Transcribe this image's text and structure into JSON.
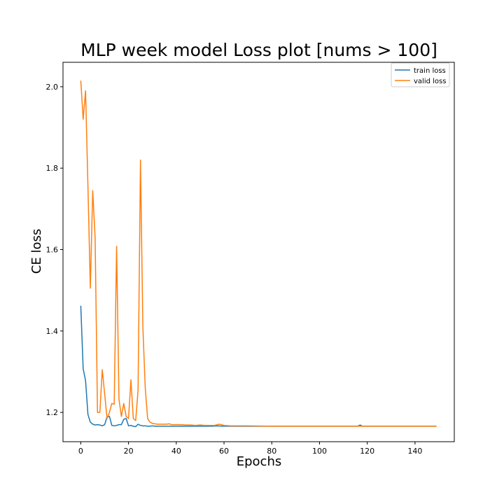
{
  "chart_data": {
    "type": "line",
    "title": "MLP week model Loss plot [nums > 100]",
    "xlabel": "Epochs",
    "ylabel": "CE loss",
    "xlim": [
      -7.45,
      156.45
    ],
    "ylim": [
      1.128,
      2.06
    ],
    "x_ticks": [
      0,
      20,
      40,
      60,
      80,
      100,
      120,
      140
    ],
    "y_ticks": [
      1.2,
      1.4,
      1.6,
      1.8,
      2.0
    ],
    "x_tick_labels": [
      "0",
      "20",
      "40",
      "60",
      "80",
      "100",
      "120",
      "140"
    ],
    "y_tick_labels": [
      "1.2",
      "1.4",
      "1.6",
      "1.8",
      "2.0"
    ],
    "grid": false,
    "legend": "top-right",
    "series": [
      {
        "name": "train loss",
        "color": "#1f77b4",
        "points": [
          [
            0,
            1.462
          ],
          [
            1,
            1.307
          ],
          [
            2,
            1.278
          ],
          [
            3,
            1.195
          ],
          [
            4,
            1.176
          ],
          [
            5,
            1.171
          ],
          [
            6,
            1.169
          ],
          [
            7,
            1.17
          ],
          [
            8,
            1.169
          ],
          [
            9,
            1.167
          ],
          [
            10,
            1.17
          ],
          [
            11,
            1.189
          ],
          [
            12,
            1.19
          ],
          [
            13,
            1.168
          ],
          [
            14,
            1.167
          ],
          [
            15,
            1.168
          ],
          [
            16,
            1.17
          ],
          [
            17,
            1.17
          ],
          [
            18,
            1.183
          ],
          [
            19,
            1.185
          ],
          [
            20,
            1.167
          ],
          [
            21,
            1.168
          ],
          [
            22,
            1.166
          ],
          [
            23,
            1.165
          ],
          [
            24,
            1.171
          ],
          [
            25,
            1.168
          ],
          [
            26,
            1.167
          ],
          [
            27,
            1.167
          ],
          [
            28,
            1.166
          ],
          [
            29,
            1.166
          ],
          [
            30,
            1.167
          ],
          [
            31,
            1.166
          ],
          [
            32,
            1.166
          ],
          [
            33,
            1.166
          ],
          [
            34,
            1.166
          ],
          [
            35,
            1.166
          ],
          [
            36,
            1.166
          ],
          [
            37,
            1.166
          ],
          [
            38,
            1.166
          ],
          [
            39,
            1.166
          ],
          [
            40,
            1.166
          ],
          [
            45,
            1.166
          ],
          [
            50,
            1.166
          ],
          [
            55,
            1.166
          ],
          [
            57,
            1.167
          ],
          [
            60,
            1.166
          ],
          [
            70,
            1.166
          ],
          [
            80,
            1.166
          ],
          [
            90,
            1.166
          ],
          [
            100,
            1.166
          ],
          [
            110,
            1.166
          ],
          [
            116,
            1.166
          ],
          [
            117,
            1.169
          ],
          [
            118,
            1.166
          ],
          [
            120,
            1.166
          ],
          [
            130,
            1.166
          ],
          [
            140,
            1.166
          ],
          [
            149,
            1.166
          ]
        ]
      },
      {
        "name": "valid loss",
        "color": "#ff7f0e",
        "points": [
          [
            0,
            2.015
          ],
          [
            1,
            1.92
          ],
          [
            2,
            1.99
          ],
          [
            3,
            1.755
          ],
          [
            4,
            1.505
          ],
          [
            5,
            1.745
          ],
          [
            6,
            1.63
          ],
          [
            7,
            1.2
          ],
          [
            8,
            1.2
          ],
          [
            9,
            1.305
          ],
          [
            10,
            1.245
          ],
          [
            11,
            1.185
          ],
          [
            12,
            1.2
          ],
          [
            13,
            1.222
          ],
          [
            14,
            1.22
          ],
          [
            15,
            1.608
          ],
          [
            16,
            1.232
          ],
          [
            17,
            1.19
          ],
          [
            18,
            1.222
          ],
          [
            19,
            1.19
          ],
          [
            20,
            1.185
          ],
          [
            21,
            1.28
          ],
          [
            22,
            1.185
          ],
          [
            23,
            1.18
          ],
          [
            24,
            1.255
          ],
          [
            25,
            1.82
          ],
          [
            26,
            1.41
          ],
          [
            27,
            1.26
          ],
          [
            28,
            1.185
          ],
          [
            29,
            1.176
          ],
          [
            30,
            1.173
          ],
          [
            31,
            1.172
          ],
          [
            32,
            1.171
          ],
          [
            33,
            1.171
          ],
          [
            34,
            1.171
          ],
          [
            35,
            1.171
          ],
          [
            36,
            1.171
          ],
          [
            37,
            1.172
          ],
          [
            38,
            1.17
          ],
          [
            39,
            1.17
          ],
          [
            40,
            1.17
          ],
          [
            42,
            1.17
          ],
          [
            44,
            1.169
          ],
          [
            46,
            1.169
          ],
          [
            48,
            1.168
          ],
          [
            50,
            1.169
          ],
          [
            52,
            1.168
          ],
          [
            54,
            1.168
          ],
          [
            56,
            1.168
          ],
          [
            58,
            1.171
          ],
          [
            60,
            1.168
          ],
          [
            63,
            1.167
          ],
          [
            66,
            1.167
          ],
          [
            70,
            1.167
          ],
          [
            80,
            1.166
          ],
          [
            90,
            1.166
          ],
          [
            100,
            1.166
          ],
          [
            110,
            1.166
          ],
          [
            120,
            1.166
          ],
          [
            130,
            1.166
          ],
          [
            140,
            1.166
          ],
          [
            149,
            1.166
          ]
        ]
      }
    ]
  }
}
